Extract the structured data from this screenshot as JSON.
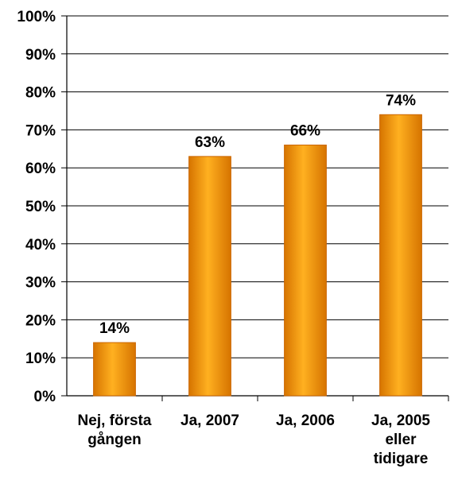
{
  "chart_data": {
    "type": "bar",
    "categories": [
      [
        "Nej, första",
        "gången"
      ],
      [
        "Ja, 2007"
      ],
      [
        "Ja, 2006"
      ],
      [
        "Ja, 2005",
        "eller",
        "tidigare"
      ]
    ],
    "values": [
      14,
      63,
      66,
      74
    ],
    "data_labels": [
      "14%",
      "63%",
      "66%",
      "74%"
    ],
    "yticks": [
      "0%",
      "10%",
      "20%",
      "30%",
      "40%",
      "50%",
      "60%",
      "70%",
      "80%",
      "90%",
      "100%"
    ],
    "ylim": [
      0,
      100
    ],
    "grid": true,
    "title": "",
    "xlabel": "",
    "ylabel": "",
    "colors": {
      "bar_edge": "#CC6600",
      "bar_light": "#FFB020",
      "bar_dark": "#D67400",
      "axis": "#000000",
      "grid": "#000000"
    }
  }
}
